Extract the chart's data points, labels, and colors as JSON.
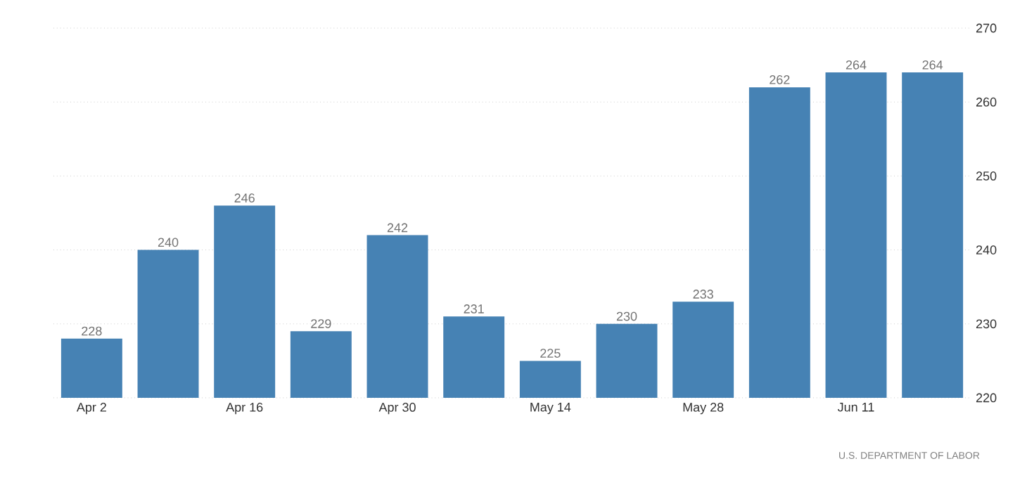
{
  "chart_data": {
    "type": "bar",
    "categories": [
      "Apr 2",
      null,
      "Apr 16",
      null,
      "Apr 30",
      null,
      "May 14",
      null,
      "May 28",
      null,
      "Jun 11",
      null
    ],
    "values": [
      228,
      240,
      246,
      229,
      242,
      231,
      225,
      230,
      233,
      262,
      264,
      264
    ],
    "color": "#4682b4",
    "ylim": [
      220,
      270
    ],
    "yticks": [
      220,
      230,
      240,
      250,
      260,
      270
    ],
    "grid": "y",
    "data_labels": true,
    "annotations": [
      "U.S. DEPARTMENT OF LABOR"
    ]
  }
}
